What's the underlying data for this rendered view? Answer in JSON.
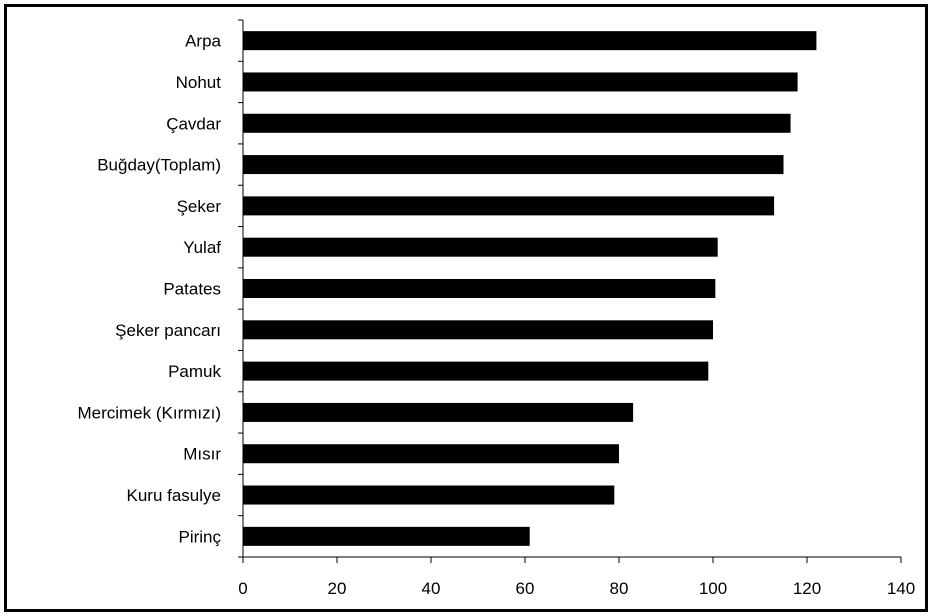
{
  "chart_data": {
    "type": "bar",
    "orientation": "horizontal",
    "title": "",
    "xlabel": "",
    "ylabel": "",
    "categories": [
      "Arpa",
      "Nohut",
      "Çavdar",
      "Buğday(Toplam)",
      "Şeker",
      "Yulaf",
      "Patates",
      "Şeker pancarı",
      "Pamuk",
      "Mercimek (Kırmızı)",
      "Mısır",
      "Kuru fasulye",
      "Pirinç"
    ],
    "values": [
      122,
      118,
      116.5,
      115,
      113,
      101,
      100.5,
      100,
      99,
      83,
      80,
      79,
      61
    ],
    "xlim": [
      0,
      140
    ],
    "xticks": [
      0,
      20,
      40,
      60,
      80,
      100,
      120,
      140
    ],
    "grid": false,
    "legend": "none",
    "bar_color": "#000000"
  }
}
